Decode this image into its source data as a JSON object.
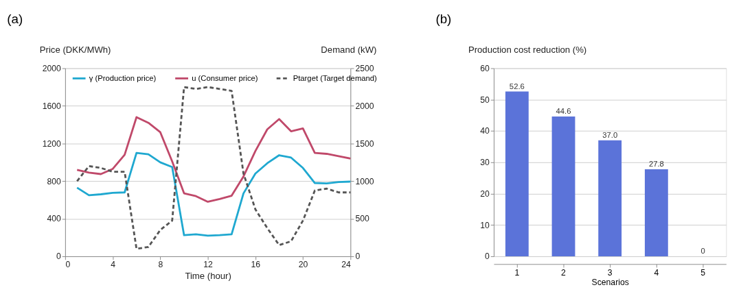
{
  "chart_data": [
    {
      "type": "line",
      "title": "(a)",
      "xlabel": "Time (hour)",
      "ylabel": "Price (DKK/MWh)",
      "y2label": "Demand (kW)",
      "x": [
        1,
        2,
        3,
        4,
        5,
        6,
        7,
        8,
        9,
        10,
        11,
        12,
        13,
        14,
        15,
        16,
        17,
        18,
        19,
        20,
        21,
        22,
        23,
        24
      ],
      "series": [
        {
          "name": "γ (Production price)",
          "color": "#1fa8d0",
          "line_style": "solid",
          "values": [
            730,
            650,
            660,
            675,
            680,
            1100,
            1085,
            1000,
            950,
            225,
            235,
            220,
            225,
            235,
            670,
            880,
            990,
            1075,
            1050,
            940,
            780,
            775,
            790,
            795
          ]
        },
        {
          "name": "u (Consumer price)",
          "color": "#c0496a",
          "line_style": "solid",
          "values": [
            920,
            890,
            875,
            930,
            1080,
            1480,
            1420,
            1320,
            1010,
            670,
            640,
            580,
            610,
            645,
            850,
            1120,
            1350,
            1460,
            1330,
            1360,
            1100,
            1090,
            1065,
            1040
          ]
        },
        {
          "name": "Ptarget (Target demand)",
          "color": "#555555",
          "line_style": "dashed",
          "axis": "y2",
          "values": [
            1000,
            1200,
            1175,
            1125,
            1125,
            100,
            125,
            350,
            475,
            2250,
            2225,
            2250,
            2225,
            2200,
            1100,
            625,
            375,
            150,
            200,
            475,
            875,
            900,
            850,
            850
          ]
        }
      ],
      "xlim": [
        0,
        24
      ],
      "xticks": [
        0,
        4,
        8,
        12,
        16,
        20,
        24
      ],
      "ylim": [
        0,
        2000
      ],
      "yticks": [
        0,
        400,
        800,
        1200,
        1600,
        2000
      ],
      "y2lim": [
        0,
        2500
      ],
      "y2ticks": [
        0,
        500,
        1000,
        1500,
        2000,
        2500
      ],
      "grid": "y",
      "legend": "top",
      "marker": "none"
    },
    {
      "type": "bar",
      "title": "(b)",
      "xlabel": "Scenarios",
      "ylabel": "Production cost reduction (%)",
      "categories": [
        "1",
        "2",
        "3",
        "4",
        "5"
      ],
      "values": [
        52.6,
        44.6,
        37.0,
        27.8,
        0
      ],
      "color": "#5b73d9",
      "ylim": [
        0,
        60
      ],
      "yticks": [
        0,
        10,
        20,
        30,
        40,
        50,
        60
      ],
      "grid": "y",
      "value_labels": [
        "52.6",
        "44.6",
        "37.0",
        "27.8",
        "0"
      ]
    }
  ]
}
